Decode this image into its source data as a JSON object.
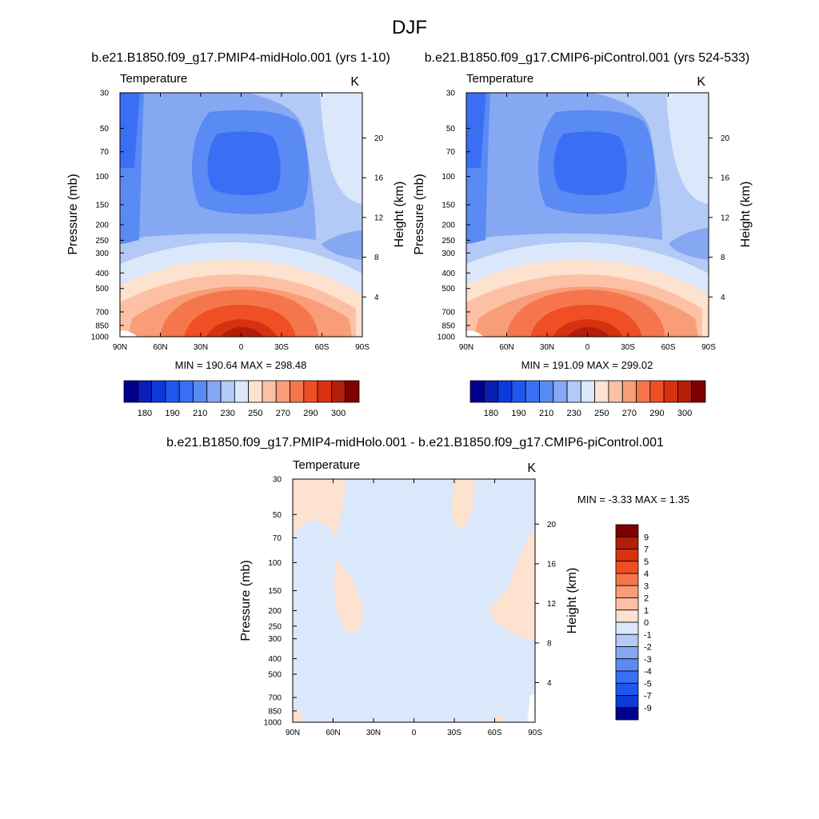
{
  "figure": {
    "title": "DJF",
    "panel_a_title": "b.e21.B1850.f09_g17.PMIP4-midHolo.001 (yrs 1-10)",
    "panel_b_title": "b.e21.B1850.f09_g17.CMIP6-piControl.001 (yrs 524-533)",
    "panel_c_title": "b.e21.B1850.f09_g17.PMIP4-midHolo.001 - b.e21.B1850.f09_g17.CMIP6-piControl.001"
  },
  "panels": {
    "a": {
      "variable": "Temperature",
      "units": "K",
      "ylabel_left": "Pressure (mb)",
      "ylabel_right": "Height (km)",
      "minmax": "MIN = 190.64  MAX = 298.48"
    },
    "b": {
      "variable": "Temperature",
      "units": "K",
      "ylabel_left": "Pressure (mb)",
      "ylabel_right": "Height (km)",
      "minmax": "MIN = 191.09  MAX = 299.02"
    },
    "c": {
      "variable": "Temperature",
      "units": "K",
      "ylabel_left": "Pressure (mb)",
      "ylabel_right": "Height (km)",
      "minmax": "MIN =  -3.33  MAX =   1.35"
    }
  },
  "chart_data": [
    {
      "type": "heatmap",
      "x_ticks": [
        "90N",
        "60N",
        "30N",
        "0",
        "30S",
        "60S",
        "90S"
      ],
      "pressure_ticks": [
        30,
        50,
        70,
        100,
        150,
        200,
        250,
        300,
        400,
        500,
        700,
        850,
        1000
      ],
      "height_ticks": [
        4,
        8,
        12,
        16,
        20
      ],
      "field": "midHolo DJF temperature (K)",
      "min": 190.64,
      "max": 298.48,
      "colorbar": {
        "levels": [
          180,
          190,
          200,
          210,
          220,
          230,
          240,
          250,
          260,
          270,
          280,
          290,
          300
        ],
        "labels": [
          "180",
          "190",
          "210",
          "230",
          "250",
          "270",
          "290",
          "300"
        ],
        "colors": [
          "#00008c",
          "#0a1db4",
          "#0c3ad9",
          "#1f56f0",
          "#3a6ff5",
          "#5a8af3",
          "#86a8f3",
          "#b3c9f6",
          "#dbe7fb",
          "#fde2cf",
          "#fcc1a5",
          "#f99d78",
          "#f5764d",
          "#f04e23",
          "#d8310f",
          "#b21e0a",
          "#800000"
        ]
      }
    },
    {
      "type": "heatmap",
      "x_ticks": [
        "90N",
        "60N",
        "30N",
        "0",
        "30S",
        "60S",
        "90S"
      ],
      "pressure_ticks": [
        30,
        50,
        70,
        100,
        150,
        200,
        250,
        300,
        400,
        500,
        700,
        850,
        1000
      ],
      "height_ticks": [
        4,
        8,
        12,
        16,
        20
      ],
      "field": "piControl DJF temperature (K)",
      "min": 191.09,
      "max": 299.02,
      "colorbar": {
        "levels": [
          180,
          190,
          200,
          210,
          220,
          230,
          240,
          250,
          260,
          270,
          280,
          290,
          300
        ],
        "labels": [
          "180",
          "190",
          "210",
          "230",
          "250",
          "270",
          "290",
          "300"
        ],
        "colors": [
          "#00008c",
          "#0a1db4",
          "#0c3ad9",
          "#1f56f0",
          "#3a6ff5",
          "#5a8af3",
          "#86a8f3",
          "#b3c9f6",
          "#dbe7fb",
          "#fde2cf",
          "#fcc1a5",
          "#f99d78",
          "#f5764d",
          "#f04e23",
          "#d8310f",
          "#b21e0a",
          "#800000"
        ]
      }
    },
    {
      "type": "heatmap",
      "x_ticks": [
        "90N",
        "60N",
        "30N",
        "0",
        "30S",
        "60S",
        "90S"
      ],
      "pressure_ticks": [
        30,
        50,
        70,
        100,
        150,
        200,
        250,
        300,
        400,
        500,
        700,
        850,
        1000
      ],
      "height_ticks": [
        4,
        8,
        12,
        16,
        20
      ],
      "field": "difference (K)",
      "min": -3.33,
      "max": 1.35,
      "colorbar": {
        "labels": [
          "9",
          "7",
          "5",
          "4",
          "3",
          "2",
          "1",
          "0",
          "-1",
          "-2",
          "-3",
          "-4",
          "-5",
          "-7",
          "-9"
        ],
        "colors": [
          "#800000",
          "#b21e0a",
          "#d8310f",
          "#f04e23",
          "#f5764d",
          "#f99d78",
          "#fcc1a5",
          "#fde2cf",
          "#dbe7fb",
          "#b3c9f6",
          "#86a8f3",
          "#5a8af3",
          "#3a6ff5",
          "#1f56f0",
          "#0c3ad9",
          "#00008c"
        ]
      }
    }
  ]
}
